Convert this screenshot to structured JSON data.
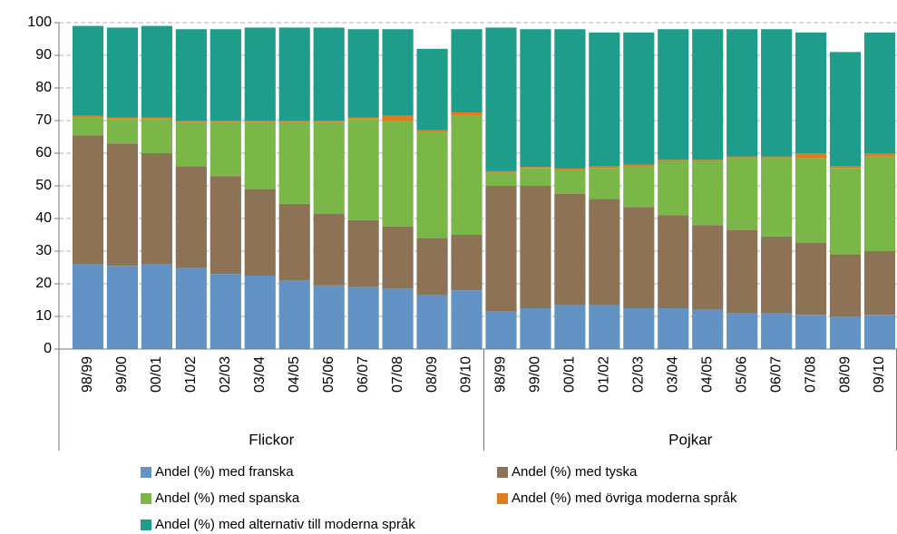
{
  "chart_data": {
    "type": "bar",
    "stacked": true,
    "groups": [
      {
        "name": "Flickor",
        "categories": [
          "98/99",
          "99/00",
          "00/01",
          "01/02",
          "02/03",
          "03/04",
          "04/05",
          "05/06",
          "06/07",
          "07/08",
          "08/09",
          "09/10"
        ]
      },
      {
        "name": "Pojkar",
        "categories": [
          "98/99",
          "99/00",
          "00/01",
          "01/02",
          "02/03",
          "03/04",
          "04/05",
          "05/06",
          "06/07",
          "07/08",
          "08/09",
          "09/10"
        ]
      }
    ],
    "series": [
      {
        "name": "Andel (%) med franska",
        "color": "#6393c5",
        "values": [
          26,
          25.5,
          26,
          25,
          23,
          22.5,
          21,
          19.5,
          19,
          18.5,
          16.5,
          18,
          11.5,
          12.5,
          13.5,
          13.5,
          12.5,
          12.5,
          12,
          11,
          11,
          10.5,
          10,
          10.5
        ]
      },
      {
        "name": "Andel (%) med tyska",
        "color": "#8c7355",
        "values": [
          39.5,
          37.5,
          34,
          31,
          30,
          26.5,
          23.5,
          22,
          20.5,
          19,
          17.5,
          17,
          38.5,
          37.5,
          34,
          32.5,
          31,
          28.5,
          26,
          25.5,
          23.5,
          22,
          19,
          19.5
        ]
      },
      {
        "name": "Andel (%) med spanska",
        "color": "#7ab648",
        "values": [
          5.5,
          7.5,
          10.5,
          13.5,
          16.5,
          20.5,
          25,
          28,
          31,
          32.5,
          32.5,
          36.5,
          4,
          5.5,
          7.5,
          9.5,
          12.5,
          16.5,
          19.5,
          22,
          24,
          26,
          26.5,
          29
        ]
      },
      {
        "name": "Andel (%) med övriga moderna språk",
        "color": "#e07b20",
        "values": [
          0.5,
          0.5,
          0.5,
          0.5,
          0.5,
          0.5,
          0.3,
          0.5,
          0.5,
          1.5,
          0.5,
          1,
          0.5,
          0.3,
          0.3,
          0.5,
          0.5,
          0.5,
          0.5,
          0.5,
          0.5,
          1.5,
          0.5,
          1
        ]
      },
      {
        "name": "Andel (%) med alternativ till moderna språk",
        "color": "#1f9d8b",
        "values": [
          27.5,
          27.5,
          28,
          28,
          28,
          28.5,
          28.7,
          28.5,
          27,
          26.5,
          25,
          25.5,
          44,
          42.2,
          42.7,
          41,
          40.5,
          40,
          40,
          39,
          39,
          37,
          35,
          37
        ]
      }
    ],
    "ylim": [
      0,
      100
    ],
    "yticks": [
      0,
      10,
      20,
      30,
      40,
      50,
      60,
      70,
      80,
      90,
      100
    ],
    "grid": true
  }
}
